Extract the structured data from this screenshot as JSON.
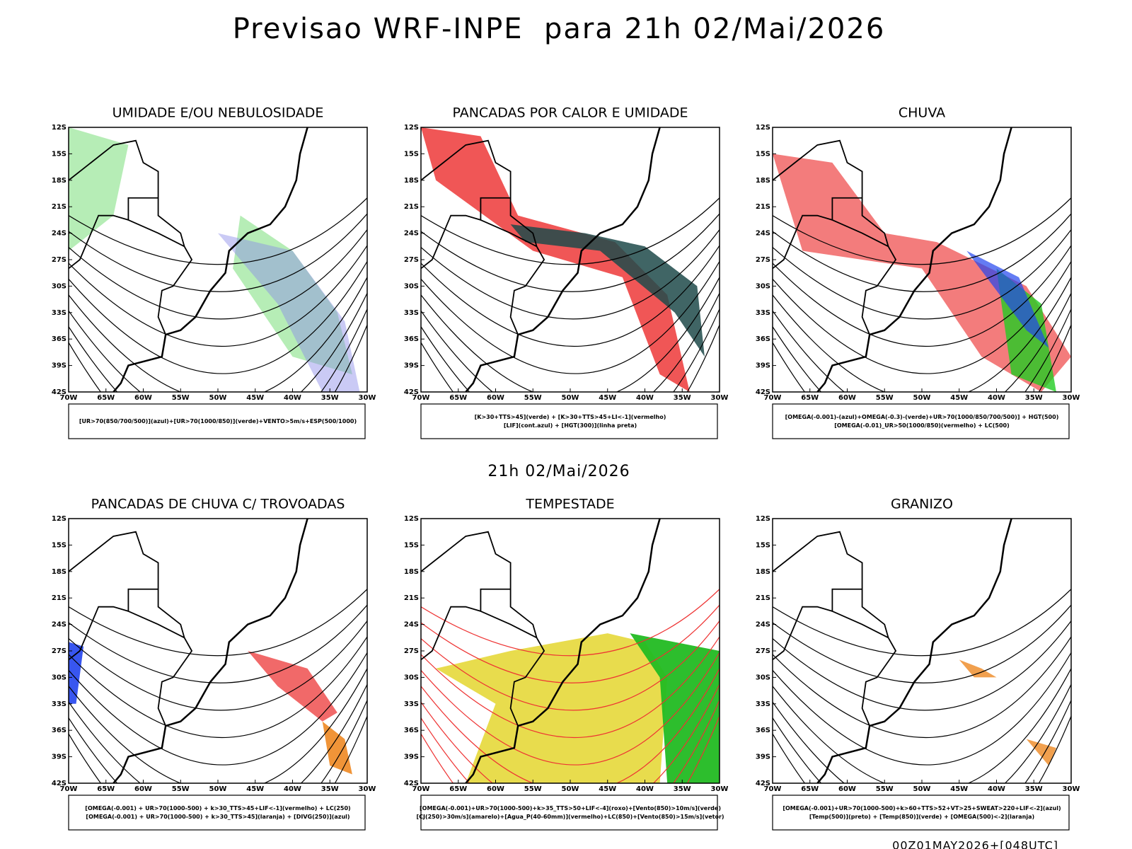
{
  "title": "Previsao WRF-INPE  para 21h 02/Mai/2026",
  "subtitle": "21h 02/Mai/2026",
  "footer": "00Z01MAY2026+[048UTC]",
  "lat_labels": [
    "12S",
    "15S",
    "18S",
    "21S",
    "24S",
    "27S",
    "30S",
    "33S",
    "36S",
    "39S",
    "42S"
  ],
  "lon_labels": [
    "70W",
    "65W",
    "60W",
    "55W",
    "50W",
    "45W",
    "40W",
    "35W",
    "30W"
  ],
  "panels": [
    {
      "title": "UMIDADE E/OU NEBULOSIDADE",
      "legend": [
        "[UR>70(850/700/500)](azul)+[UR>70(1000/850)](verde)+VENTO>5m/s+ESP(500/1000)"
      ]
    },
    {
      "title": "PANCADAS POR CALOR E UMIDADE",
      "legend": [
        "[K>30+TTS>45](verde) + [K>30+TTS>45+LI<-1](vermelho)",
        "[LIF](cont.azul) + [HGT(300)](linha preta)"
      ]
    },
    {
      "title": "CHUVA",
      "legend": [
        "[OMEGA(-0.001)-(azul)+OMEGA(-0.3)-(verde)+UR>70(1000/850/700/500)] + HGT(500)",
        "[OMEGA(-0.01)_UR>50(1000/850)(vermelho) + LC(500)"
      ]
    },
    {
      "title": "PANCADAS DE CHUVA C/ TROVOADAS",
      "legend": [
        "[OMEGA(-0.001) + UR>70(1000-500) + k>30_TTS>45+LIF<-1](vermelho) + LC(250)",
        "[OMEGA(-0.001) + UR>70(1000-500) + k>30_TTS>45](laranja) + [DIVG(250)](azul)"
      ]
    },
    {
      "title": "TEMPESTADE",
      "legend": [
        "[OMEGA(-0.001)+UR>70(1000-500)+k>35_TTS>50+LIF<-4](roxo)+[Vento(850)>10m/s](verde)",
        "[CJ(250)>30m/s](amarelo)+[Agua_P(40-60mm)](vermelho)+LC(850)+[Vento(850)>15m/s](vetor)"
      ]
    },
    {
      "title": "GRANIZO",
      "legend": [
        "[OMEGA(-0.001)+UR>70(1000-500)+k>60+TTS>52+VT>25+SWEAT>220+LIF<-2](azul)",
        "[Temp(500)](preto) + [Temp(850)](verde) + [OMEGA(500)<-2](laranja)"
      ]
    }
  ]
}
